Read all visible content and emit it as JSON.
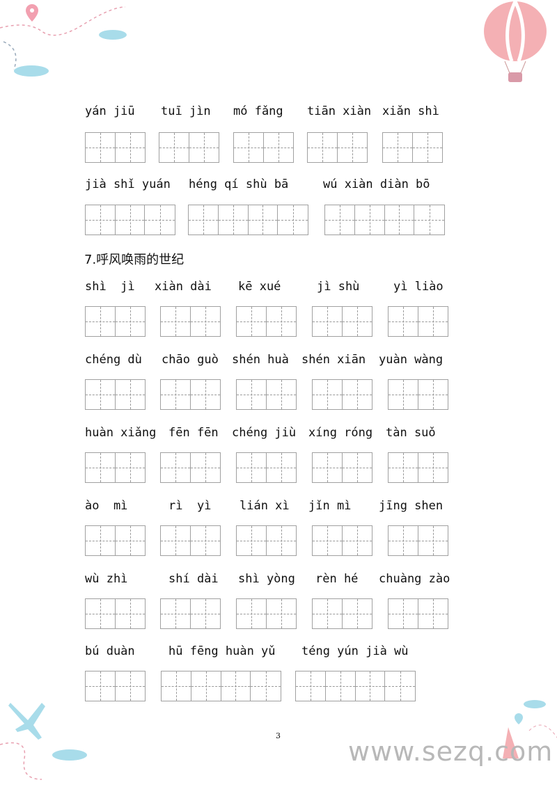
{
  "section_top": {
    "rows": [
      [
        "yán jiū",
        "tuī jìn",
        "mó fǎng",
        "tiān xiàn",
        "xiǎn shì"
      ],
      [
        "jià shǐ yuán",
        "héng qí shù bā",
        "wú xiàn diàn bō"
      ]
    ]
  },
  "section7": {
    "heading": "7.呼风唤雨的世纪",
    "rows": [
      [
        "shì  jì",
        "xiàn dài",
        "kē xué",
        "jì shù",
        "yì liào"
      ],
      [
        "chéng dù",
        "chāo guò",
        "shén huà",
        "shén xiān",
        "yuàn wàng"
      ],
      [
        "huàn xiǎng",
        "fēn fēn",
        "chéng jiù",
        "xíng róng",
        "tàn suǒ"
      ],
      [
        "ào  mì",
        "rì  yì",
        "lián xì",
        "jǐn mì",
        "jīng shen"
      ],
      [
        "wù zhì",
        "shí dài",
        "shì yòng",
        "rèn hé",
        "chuàng zào"
      ],
      [
        "bú duàn",
        "hū fēng huàn yǔ",
        "téng yún jià wù"
      ]
    ]
  },
  "footer": {
    "page_number": "3",
    "watermark": "www.sezq.com"
  },
  "colors": {
    "grid": "#a0a0a0",
    "balloon": "#f2a0a5",
    "cloud": "#a8dcea",
    "watermark": "#b8b8b8"
  }
}
